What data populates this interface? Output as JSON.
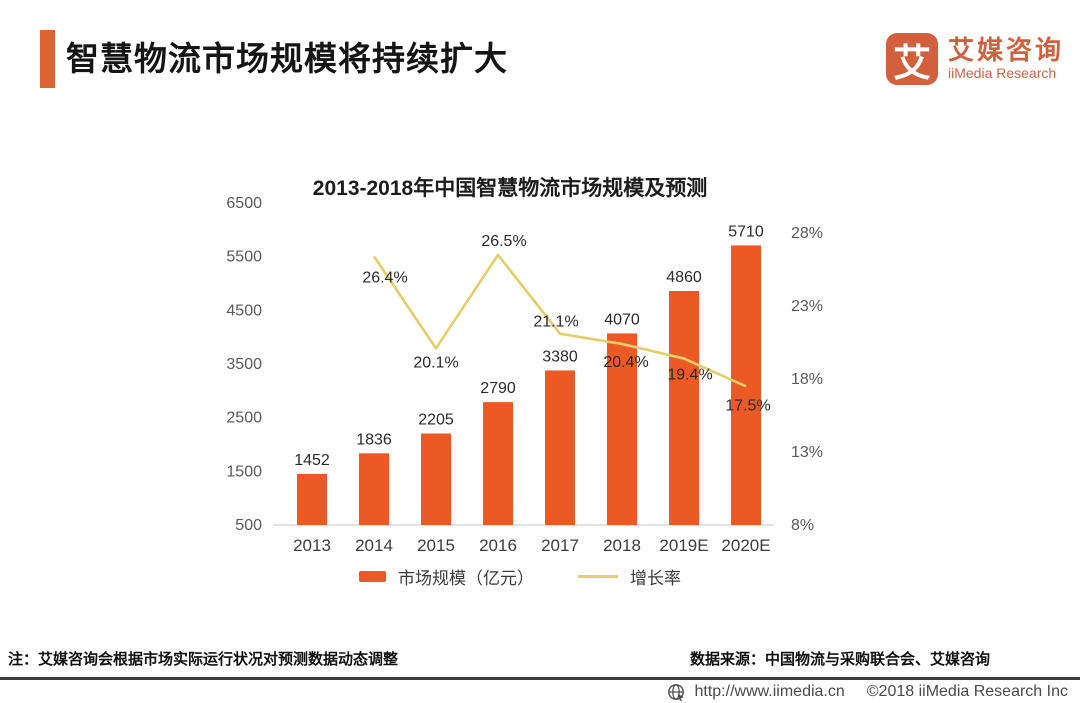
{
  "header": {
    "title": "智慧物流市场规模将持续扩大",
    "logo": {
      "symbol": "艾",
      "name_cn": "艾媒咨询",
      "name_en": "iiMedia Research"
    }
  },
  "chart_data": {
    "type": "bar+line combo",
    "title": "2013-2018年中国智慧物流市场规模及预测",
    "categories": [
      "2013",
      "2014",
      "2015",
      "2016",
      "2017",
      "2018",
      "2019E",
      "2020E"
    ],
    "series": [
      {
        "name": "市场规模（亿元）",
        "type": "bar",
        "axis": "left",
        "color": "#EB5A25",
        "values": [
          1452,
          1836,
          2205,
          2790,
          3380,
          4070,
          4860,
          5710
        ]
      },
      {
        "name": "增长率",
        "type": "line",
        "axis": "right",
        "color": "#E5CD68",
        "label_suffix": "%",
        "values": [
          null,
          26.4,
          20.1,
          26.5,
          21.1,
          20.4,
          19.4,
          17.5
        ]
      }
    ],
    "left_axis": {
      "min": 500,
      "max": 6500,
      "ticks": [
        500,
        1500,
        2500,
        3500,
        4500,
        5500,
        6500
      ]
    },
    "right_axis": {
      "min": 8,
      "max": 28,
      "ticks": [
        8,
        13,
        18,
        23,
        28
      ],
      "suffix": "%"
    },
    "grid": false,
    "legend_position": "bottom"
  },
  "footer": {
    "note": "注：艾媒咨询会根据市场实际运行状况对预测数据动态调整",
    "source": "数据来源：中国物流与采购联合会、艾媒咨询",
    "url": "http://www.iimedia.cn",
    "copyright": "©2018  iiMedia Research Inc"
  },
  "colors": {
    "accent": "#DD6430",
    "bar": "#EB5A25",
    "line": "#E5CD68",
    "logo": "#D2603D",
    "axis_text": "#595959",
    "baseline": "#D9D9D9",
    "footer_rule": "#3C3C3C",
    "footer_text": "#4A4A4A"
  }
}
